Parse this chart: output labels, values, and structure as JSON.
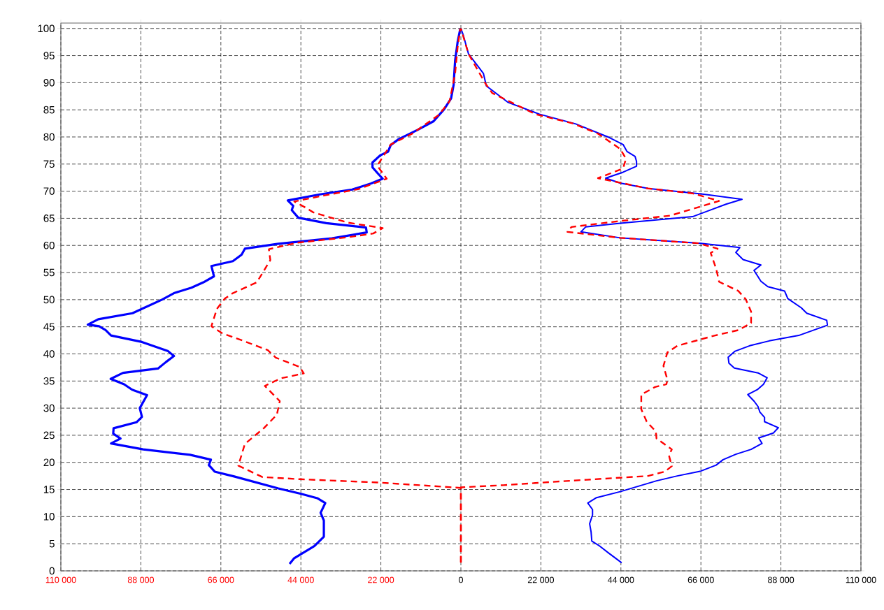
{
  "chart_data": {
    "type": "line",
    "grid": true,
    "xlim": [
      -110000,
      110000
    ],
    "ylim": [
      0,
      101
    ],
    "xticks": [
      {
        "value": -110000,
        "label": "110 000"
      },
      {
        "value": -88000,
        "label": "88 000"
      },
      {
        "value": -66000,
        "label": "66 000"
      },
      {
        "value": -44000,
        "label": "44 000"
      },
      {
        "value": -22000,
        "label": "22 000"
      },
      {
        "value": 0,
        "label": "0"
      },
      {
        "value": 22000,
        "label": "22 000"
      },
      {
        "value": 44000,
        "label": "44 000"
      },
      {
        "value": 66000,
        "label": "66 000"
      },
      {
        "value": 88000,
        "label": "88 000"
      },
      {
        "value": 110000,
        "label": "110 000"
      }
    ],
    "yticks": [
      0,
      5,
      10,
      15,
      20,
      25,
      30,
      35,
      40,
      45,
      50,
      55,
      60,
      65,
      70,
      75,
      80,
      85,
      90,
      95,
      100
    ],
    "series": [
      {
        "color": "#0000ff",
        "line_style": "solid",
        "x": [
          -47100,
          -45900,
          -40260,
          -37680,
          -37680,
          -38570,
          -37300,
          -39500,
          -43940,
          -50200,
          -62340,
          -67700,
          -69300,
          -68740,
          -74480,
          -87360,
          -96200,
          -93600,
          -95600,
          -95500,
          -89200,
          -87700,
          -88300,
          -86300,
          -90400,
          -92600,
          -96300,
          -92900,
          -83300,
          -81100,
          -78900,
          -80500,
          -87700,
          -96200,
          -97700,
          -99500,
          -102600,
          -99700,
          -90300,
          -87700,
          -82200,
          -78900,
          -74100,
          -70800,
          -67900,
          -68600,
          -62700,
          -60300,
          -59400,
          -50200,
          -35500,
          -25900,
          -26100,
          -37000,
          -44700,
          -46500,
          -46100,
          -47600,
          -38800,
          -29900,
          -24800,
          -21500,
          -23000,
          -24300,
          -24300,
          -22200,
          -20000,
          -19300,
          -17100,
          -11900,
          -7500,
          -4600,
          -2700,
          -2000,
          -1600,
          -900,
          -150
        ],
        "values": [
          1.3,
          2.3,
          4.6,
          6.3,
          9.3,
          10.7,
          12.5,
          13.4,
          14.2,
          15.2,
          17.4,
          18.3,
          19.5,
          20.5,
          21.4,
          22.4,
          23.5,
          24.4,
          25.3,
          26.3,
          27.4,
          28.4,
          30.0,
          32.4,
          33.4,
          34.4,
          35.4,
          36.5,
          37.3,
          38.5,
          39.6,
          40.5,
          42.2,
          43.4,
          44.4,
          45.1,
          45.4,
          46.4,
          47.5,
          48.3,
          50.0,
          51.2,
          52.2,
          53.2,
          54.3,
          56.2,
          57.1,
          58.3,
          59.4,
          60.3,
          61.3,
          62.4,
          63.3,
          64.1,
          65.1,
          66.5,
          67.3,
          68.3,
          69.4,
          70.3,
          71.4,
          72.3,
          73.4,
          74.4,
          75.3,
          76.6,
          77.3,
          78.5,
          79.6,
          81.3,
          82.9,
          85.1,
          87.1,
          89.6,
          94.0,
          97.5,
          100
        ]
      },
      {
        "color": "#0000ff",
        "line_style": "solid",
        "x": [
          44200,
          40600,
          38100,
          36000,
          35800,
          35400,
          36200,
          36200,
          34900,
          37300,
          43800,
          53800,
          59500,
          66000,
          70200,
          72100,
          75600,
          79800,
          82800,
          81900,
          85900,
          87300,
          83500,
          83500,
          82200,
          81700,
          80600,
          78900,
          81500,
          83200,
          84200,
          81700,
          75200,
          73700,
          73500,
          75400,
          79400,
          84800,
          92900,
          100800,
          100600,
          95100,
          93600,
          89900,
          89000,
          84400,
          82500,
          80600,
          82500,
          77600,
          75600,
          76700,
          66000,
          43800,
          33000,
          34300,
          43800,
          63700,
          72900,
          77300,
          66000,
          51500,
          43800,
          39800,
          44600,
          48300,
          48300,
          47900,
          45700,
          44600,
          40800,
          31600,
          21600,
          12900,
          7000,
          6200,
          2100,
          600,
          0
        ],
        "values": [
          1.5,
          3.3,
          4.6,
          5.5,
          7.2,
          8.7,
          10.3,
          11.3,
          12.5,
          13.5,
          14.6,
          16.6,
          17.5,
          18.4,
          19.5,
          20.5,
          21.5,
          22.4,
          23.5,
          24.5,
          25.4,
          26.4,
          27.5,
          28.3,
          29.3,
          30.3,
          31.3,
          32.5,
          33.4,
          34.4,
          35.6,
          36.5,
          37.4,
          38.3,
          39.4,
          40.5,
          41.5,
          42.4,
          43.4,
          45.3,
          46.2,
          47.5,
          48.5,
          50.2,
          51.6,
          52.4,
          53.4,
          55.4,
          56.4,
          57.4,
          58.7,
          59.6,
          60.4,
          61.4,
          62.5,
          63.4,
          64.1,
          65.3,
          67.6,
          68.5,
          69.5,
          70.5,
          71.5,
          72.4,
          73.5,
          74.6,
          75.5,
          76.4,
          77.3,
          78.6,
          79.9,
          82.4,
          84.2,
          86.4,
          89.4,
          91.7,
          95.3,
          98.9,
          100
        ]
      },
      {
        "color": "#ff0000",
        "line_style": "dashed",
        "x": [
          0,
          0,
          -22960,
          -44300,
          -54600,
          -61200,
          -59400,
          -54200,
          -50600,
          -49800,
          -53900,
          -49500,
          -43200,
          -44300,
          -50900,
          -53100,
          -59400,
          -65600,
          -68600,
          -67100,
          -64900,
          -62700,
          -56100,
          -52400,
          -52800,
          -45000,
          -31100,
          -24100,
          -21500,
          -31100,
          -40600,
          -42800,
          -45800,
          -37700,
          -28100,
          -20400,
          -23000,
          -19300,
          -13400,
          -6000,
          -3100,
          -1600,
          -900,
          -150
        ],
        "values": [
          1.6,
          15.3,
          16.3,
          16.9,
          17.3,
          19.4,
          23.4,
          26.3,
          28.8,
          31.3,
          34.1,
          35.5,
          36.4,
          37.6,
          39.3,
          40.7,
          42.3,
          43.8,
          45.1,
          48.3,
          50.2,
          51.2,
          53.2,
          57.3,
          59.3,
          60.5,
          61.5,
          62.2,
          63.2,
          64.2,
          66.1,
          67.0,
          68.1,
          69.2,
          70.4,
          72.3,
          74.7,
          78.6,
          80.6,
          84.1,
          86.6,
          91.6,
          96.5,
          100
        ]
      },
      {
        "color": "#ff0000",
        "line_style": "dashed",
        "x": [
          0,
          0,
          11700,
          25100,
          34700,
          51500,
          56100,
          58000,
          57200,
          58000,
          53800,
          53600,
          51100,
          49600,
          49600,
          53400,
          56500,
          56800,
          55700,
          56800,
          59500,
          69900,
          76400,
          79800,
          79800,
          78300,
          76300,
          71000,
          70200,
          68700,
          70600,
          65300,
          43800,
          29300,
          30400,
          43800,
          57600,
          71000,
          63700,
          51500,
          37700,
          44600,
          45400,
          43800,
          37700,
          30800,
          20500,
          8600,
          6700,
          2100,
          0
        ],
        "values": [
          1.5,
          15.4,
          15.8,
          16.4,
          16.8,
          17.5,
          18.3,
          19.3,
          21.3,
          22.4,
          24.4,
          25.7,
          27.5,
          29.8,
          32.5,
          33.9,
          34.4,
          35.2,
          37.8,
          40.3,
          41.5,
          43.4,
          44.4,
          45.7,
          47.8,
          50.1,
          51.6,
          53.3,
          55.7,
          58.6,
          59.4,
          60.4,
          61.4,
          62.5,
          63.4,
          64.5,
          65.5,
          68.2,
          69.6,
          70.5,
          72.4,
          74.2,
          76.0,
          77.8,
          80.6,
          82.5,
          84.2,
          88.1,
          89.9,
          95.3,
          100
        ]
      }
    ]
  }
}
